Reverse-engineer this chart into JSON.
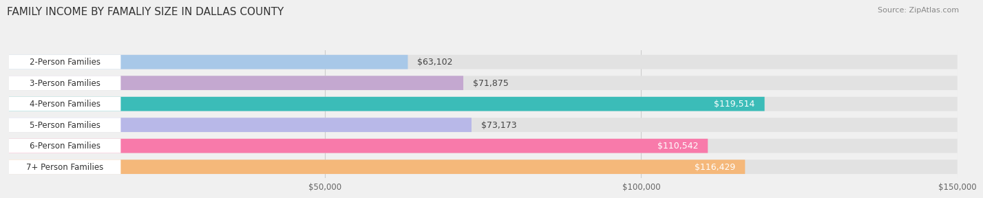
{
  "title": "FAMILY INCOME BY FAMALIY SIZE IN DALLAS COUNTY",
  "source": "Source: ZipAtlas.com",
  "categories": [
    "2-Person Families",
    "3-Person Families",
    "4-Person Families",
    "5-Person Families",
    "6-Person Families",
    "7+ Person Families"
  ],
  "values": [
    63102,
    71875,
    119514,
    73173,
    110542,
    116429
  ],
  "labels": [
    "$63,102",
    "$71,875",
    "$119,514",
    "$73,173",
    "$110,542",
    "$116,429"
  ],
  "bar_colors": [
    "#a8c8e8",
    "#c4a8d0",
    "#3bbcb8",
    "#b8b8e8",
    "#f87aaa",
    "#f5b87a"
  ],
  "label_colors": [
    "#444444",
    "#444444",
    "#ffffff",
    "#444444",
    "#ffffff",
    "#ffffff"
  ],
  "background_color": "#f0f0f0",
  "bar_bg_color": "#e2e2e2",
  "xmax": 150000,
  "xticks": [
    50000,
    100000,
    150000
  ],
  "xticklabels": [
    "$50,000",
    "$100,000",
    "$150,000"
  ],
  "title_fontsize": 11,
  "label_fontsize": 9,
  "category_fontsize": 8.5,
  "bar_height": 0.68,
  "figsize": [
    14.06,
    3.05
  ]
}
